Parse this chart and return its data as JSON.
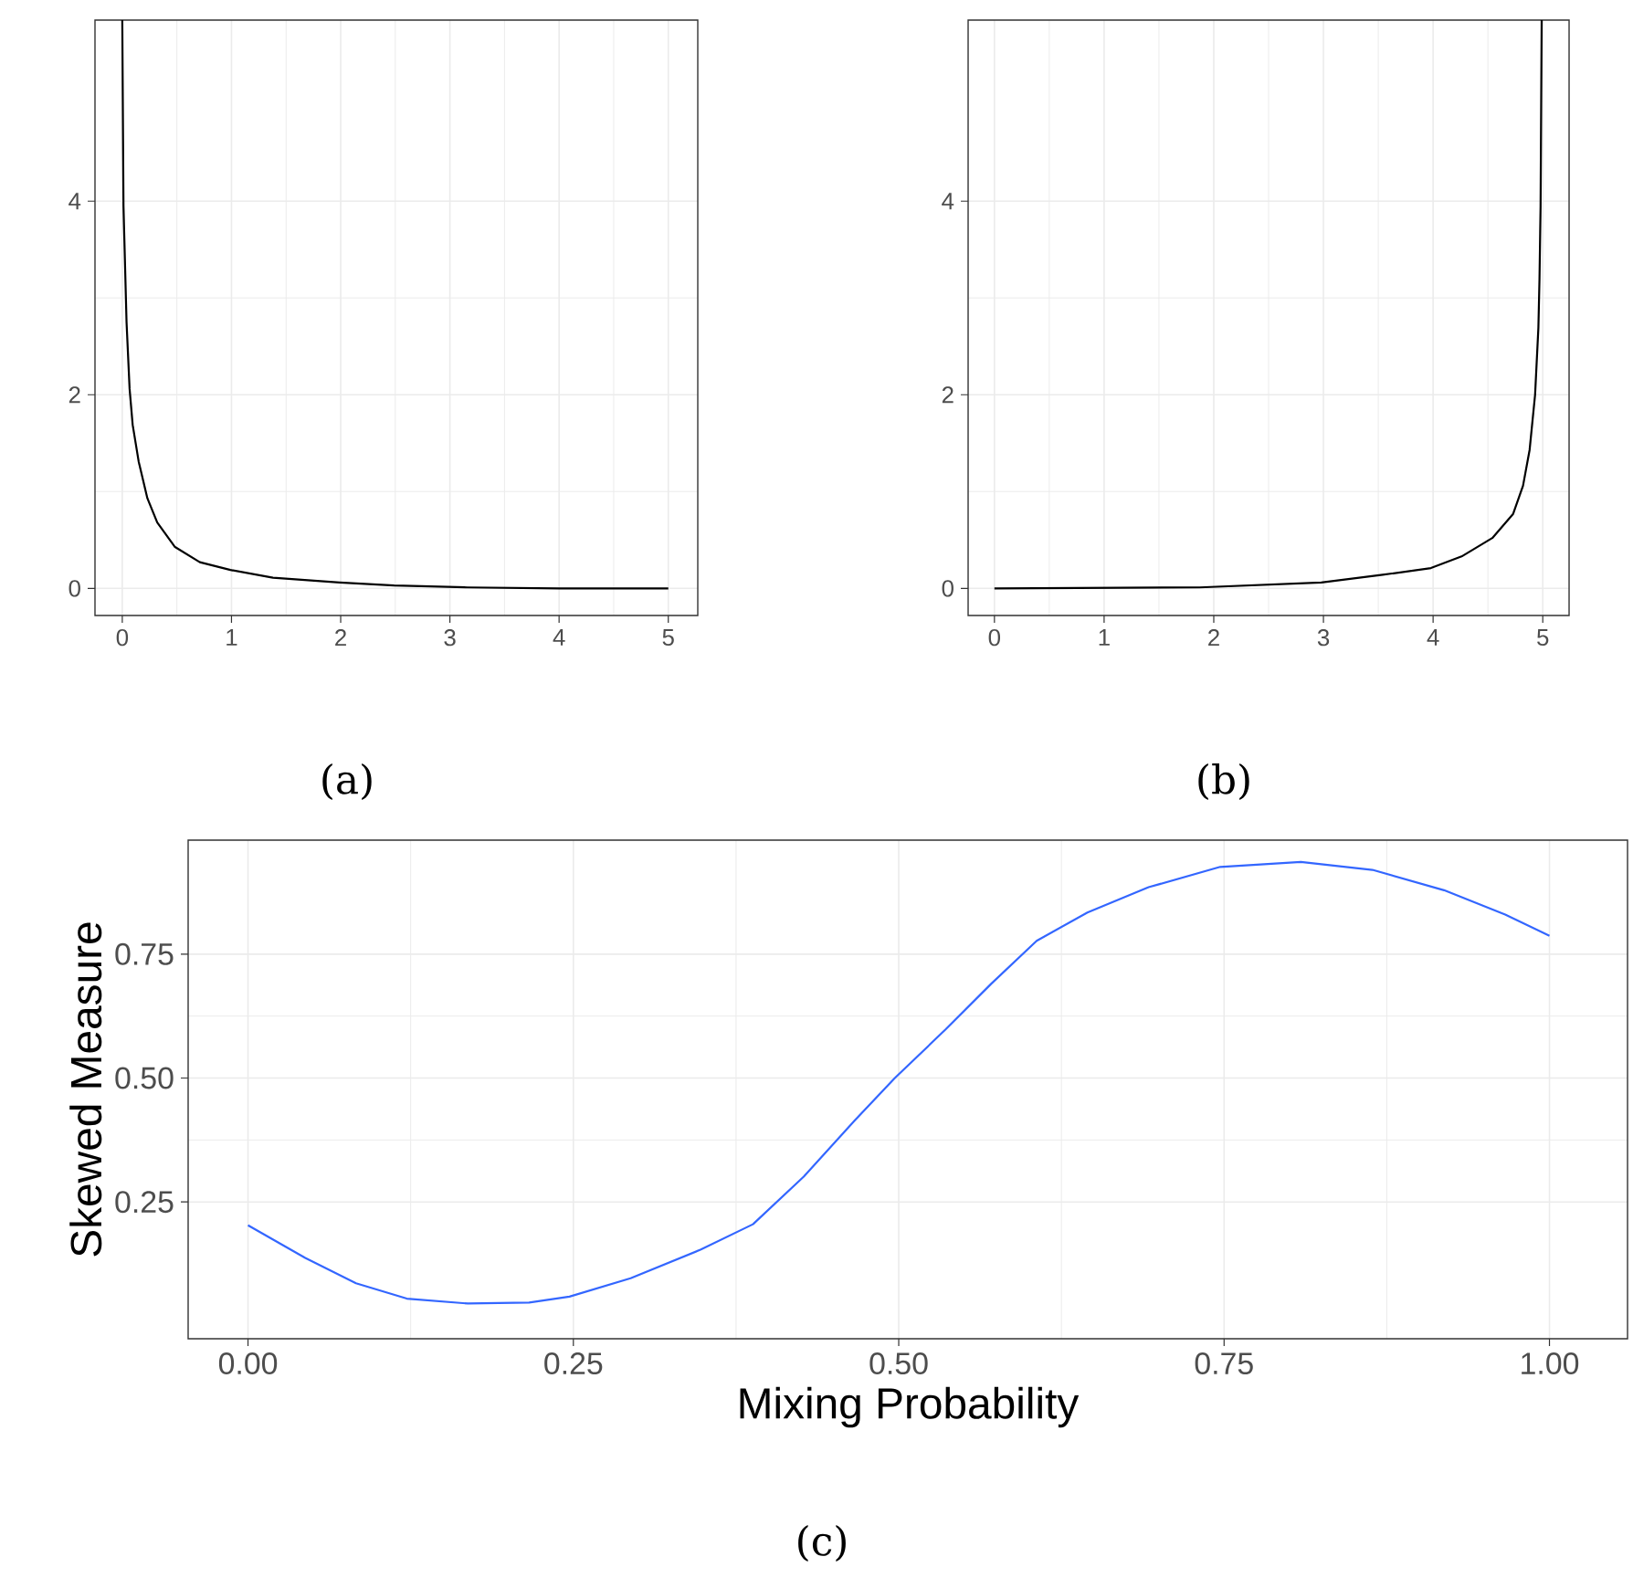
{
  "chart_data": [
    {
      "type": "line",
      "x": [
        0,
        0.011,
        0.039,
        0.067,
        0.095,
        0.15,
        0.23,
        0.32,
        0.48,
        0.71,
        0.99,
        1.38,
        1.99,
        2.49,
        3.16,
        4,
        5
      ],
      "series": [
        {
          "color": "#000000",
          "values": [
            5.87,
            3.95,
            2.75,
            2.06,
            1.69,
            1.31,
            0.93,
            0.68,
            0.43,
            0.27,
            0.19,
            0.11,
            0.06,
            0.03,
            0.01,
            0,
            0
          ]
        }
      ],
      "xlim": [
        -0.25,
        5.27
      ],
      "ylim": [
        -0.28,
        5.87
      ],
      "xticks": [
        0,
        1,
        2,
        3,
        4,
        5
      ],
      "yticks": [
        0,
        2,
        4
      ],
      "grid": true,
      "annotations": [
        "(a)"
      ]
    },
    {
      "type": "line",
      "x": [
        0,
        1.87,
        2.98,
        3.54,
        3.98,
        4.26,
        4.54,
        4.73,
        4.82,
        4.88,
        4.93,
        4.96,
        4.97,
        4.98,
        4.99
      ],
      "series": [
        {
          "color": "#000000",
          "values": [
            0,
            0.01,
            0.06,
            0.14,
            0.21,
            0.33,
            0.52,
            0.77,
            1.06,
            1.43,
            2.0,
            2.69,
            3.19,
            3.95,
            5.87
          ]
        }
      ],
      "xlim": [
        -0.24,
        5.24
      ],
      "ylim": [
        -0.28,
        5.87
      ],
      "xticks": [
        0,
        1,
        2,
        3,
        4,
        5
      ],
      "yticks": [
        0,
        2,
        4
      ],
      "grid": true,
      "annotations": [
        "(b)"
      ]
    },
    {
      "type": "line",
      "xlabel": "Mixing Probability",
      "ylabel": "Skewed Measure",
      "x": [
        0,
        0.044,
        0.083,
        0.122,
        0.169,
        0.216,
        0.247,
        0.294,
        0.348,
        0.388,
        0.427,
        0.466,
        0.497,
        0.536,
        0.571,
        0.606,
        0.645,
        0.692,
        0.747,
        0.809,
        0.864,
        0.919,
        0.966,
        1
      ],
      "series": [
        {
          "color": "#3366ff",
          "values": [
            0.203,
            0.137,
            0.086,
            0.055,
            0.045,
            0.047,
            0.059,
            0.096,
            0.154,
            0.205,
            0.301,
            0.414,
            0.5,
            0.598,
            0.69,
            0.777,
            0.834,
            0.885,
            0.926,
            0.936,
            0.92,
            0.879,
            0.83,
            0.787
          ]
        }
      ],
      "xlim": [
        -0.046,
        1.06
      ],
      "ylim": [
        -0.026,
        0.98
      ],
      "xticks": [
        {
          "value": 0,
          "label": "0.00"
        },
        {
          "value": 0.25,
          "label": "0.25"
        },
        {
          "value": 0.5,
          "label": "0.50"
        },
        {
          "value": 0.75,
          "label": "0.75"
        },
        {
          "value": 1,
          "label": "1.00"
        }
      ],
      "yticks": [
        {
          "value": 0.25,
          "label": "0.25"
        },
        {
          "value": 0.5,
          "label": "0.50"
        },
        {
          "value": 0.75,
          "label": "0.75"
        }
      ],
      "grid": true,
      "annotations": [
        "(c)"
      ]
    }
  ]
}
